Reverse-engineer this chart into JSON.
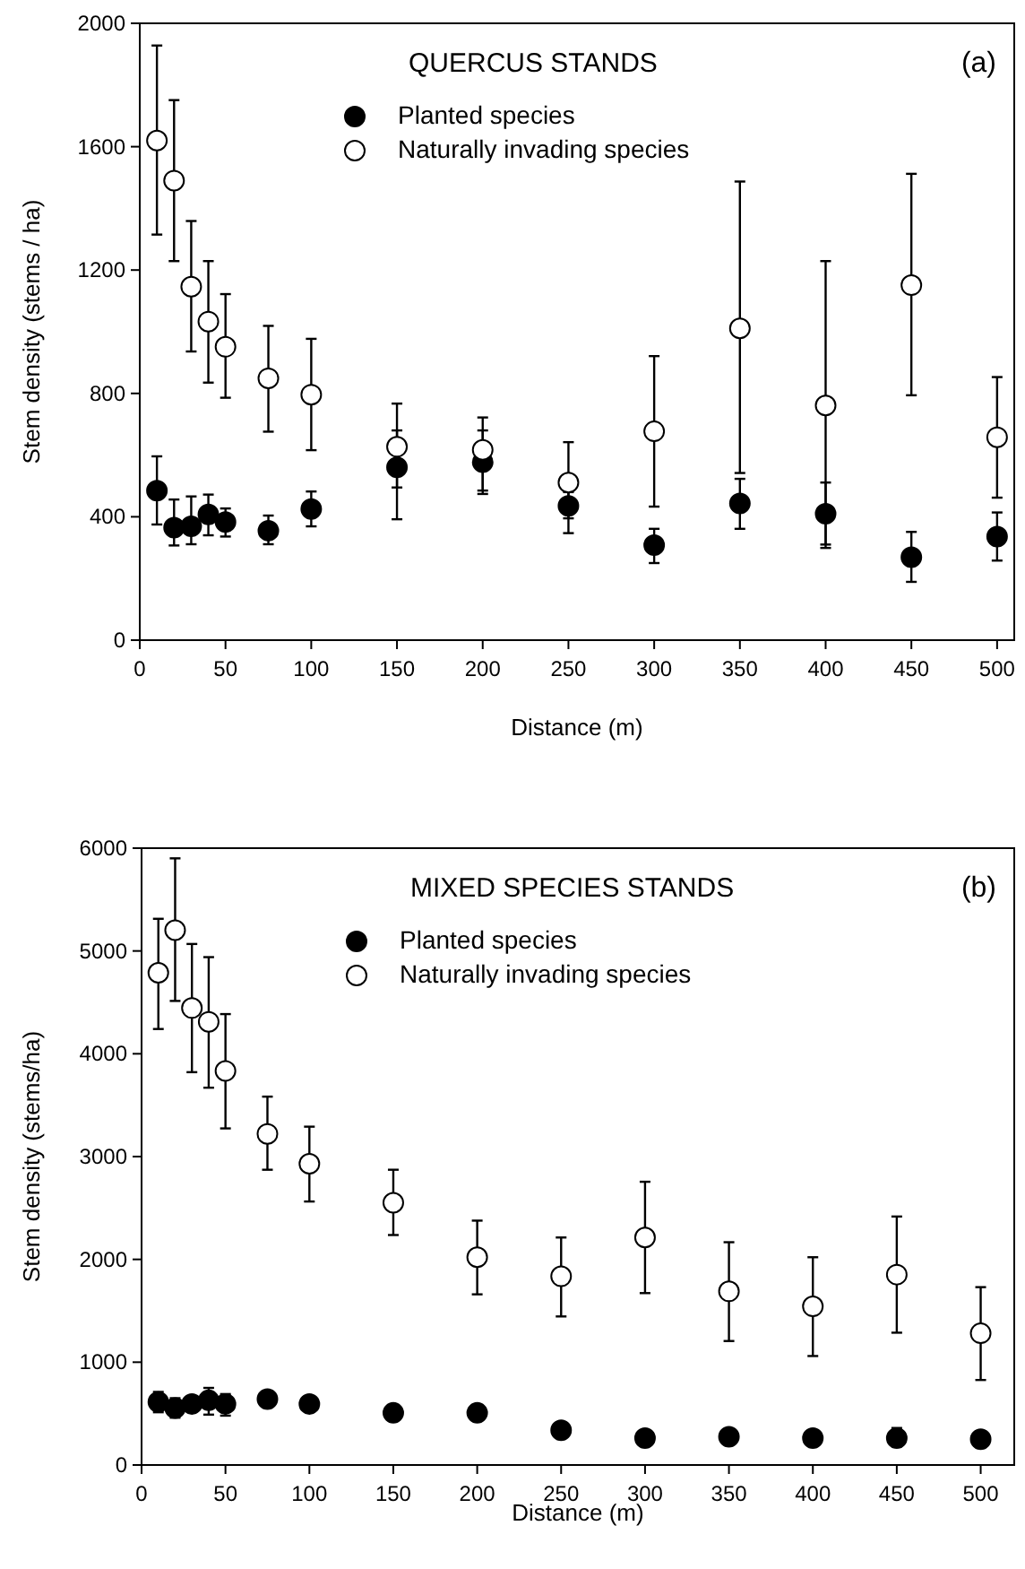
{
  "chart_data": [
    {
      "type": "scatter",
      "title": "QUERCUS STANDS",
      "xlabel": "Distance (m)",
      "ylabel": "Stem density  (stems / ha)",
      "annotations": [
        "(a)"
      ],
      "x": [
        10,
        20,
        30,
        40,
        50,
        75,
        100,
        150,
        200,
        250,
        300,
        350,
        400,
        450,
        500
      ],
      "xlim": [
        0,
        510
      ],
      "xticks": [
        0,
        50,
        100,
        150,
        200,
        250,
        300,
        350,
        400,
        450,
        500
      ],
      "ylim": [
        0,
        2000
      ],
      "yticks": [
        0,
        400,
        800,
        1200,
        1600,
        2000
      ],
      "grid": false,
      "legend": "top",
      "marker": "circle",
      "series": [
        {
          "name": "Planted species",
          "color": "#000000",
          "values": [
            485,
            365,
            369,
            408,
            383,
            355,
            425,
            560,
            577,
            435,
            308,
            443,
            410,
            269,
            336
          ],
          "errors": [
            [
              375,
              596
            ],
            [
              307,
              456
            ],
            [
              311,
              466
            ],
            [
              340,
              472
            ],
            [
              336,
              427
            ],
            [
              311,
              404
            ],
            [
              369,
              482
            ],
            [
              392,
              680
            ],
            [
              474,
              680
            ],
            [
              395,
              480
            ],
            [
              250,
              361
            ],
            [
              361,
              523
            ],
            [
              310,
              511
            ],
            [
              189,
              351
            ],
            [
              258,
              414
            ]
          ]
        },
        {
          "name": "Naturally invading species",
          "color": "#ffffff",
          "values": [
            1620,
            1490,
            1146,
            1033,
            951,
            849,
            796,
            627,
            617,
            511,
            677,
            1011,
            761,
            1151,
            658
          ],
          "errors": [
            [
              1315,
              1928
            ],
            [
              1229,
              1751
            ],
            [
              936,
              1359
            ],
            [
              835,
              1229
            ],
            [
              786,
              1122
            ],
            [
              676,
              1019
            ],
            [
              616,
              977
            ],
            [
              495,
              767
            ],
            [
              485,
              722
            ],
            [
              347,
              642
            ],
            [
              433,
              921
            ],
            [
              542,
              1487
            ],
            [
              299,
              1229
            ],
            [
              794,
              1512
            ],
            [
              462,
              853
            ]
          ]
        }
      ]
    },
    {
      "type": "scatter",
      "title": "MIXED SPECIES STANDS",
      "xlabel": "Distance (m)",
      "ylabel": "Stem density  (stems/ha)",
      "annotations": [
        "(b)"
      ],
      "x": [
        10,
        20,
        30,
        40,
        50,
        75,
        100,
        150,
        200,
        250,
        300,
        350,
        400,
        450,
        500
      ],
      "xlim": [
        0,
        520
      ],
      "xticks": [
        0,
        50,
        100,
        150,
        200,
        250,
        300,
        350,
        400,
        450,
        500
      ],
      "ylim": [
        0,
        6000
      ],
      "yticks": [
        0,
        1000,
        2000,
        3000,
        4000,
        5000,
        6000
      ],
      "grid": false,
      "legend": "top",
      "marker": "circle",
      "series": [
        {
          "name": "Planted species",
          "color": "#000000",
          "values": [
            612,
            553,
            594,
            629,
            594,
            641,
            594,
            507,
            507,
            338,
            262,
            274,
            262,
            262,
            250
          ],
          "errors": [
            [
              513,
              711
            ],
            [
              460,
              650
            ],
            [
              520,
              670
            ],
            [
              490,
              750
            ],
            [
              480,
              690
            ],
            [
              560,
              720
            ],
            [
              530,
              660
            ],
            [
              450,
              570
            ],
            [
              450,
              570
            ],
            null,
            null,
            [
              220,
              330
            ],
            null,
            [
              180,
              360
            ],
            [
              170,
              330
            ]
          ]
        },
        {
          "name": "Naturally invading species",
          "color": "#ffffff",
          "values": [
            4788,
            5202,
            4445,
            4311,
            3833,
            3221,
            2930,
            2551,
            2021,
            1835,
            2213,
            1689,
            1543,
            1852,
            1281
          ],
          "errors": [
            [
              4241,
              5313
            ],
            [
              4514,
              5901
            ],
            [
              3821,
              5068
            ],
            [
              3670,
              4940
            ],
            [
              3274,
              4386
            ],
            [
              2872,
              3583
            ],
            [
              2563,
              3291
            ],
            [
              2237,
              2872
            ],
            [
              1660,
              2377
            ],
            [
              1445,
              2213
            ],
            [
              1672,
              2755
            ],
            [
              1206,
              2167
            ],
            [
              1060,
              2021
            ],
            [
              1287,
              2417
            ],
            [
              827,
              1730
            ]
          ]
        }
      ]
    }
  ]
}
